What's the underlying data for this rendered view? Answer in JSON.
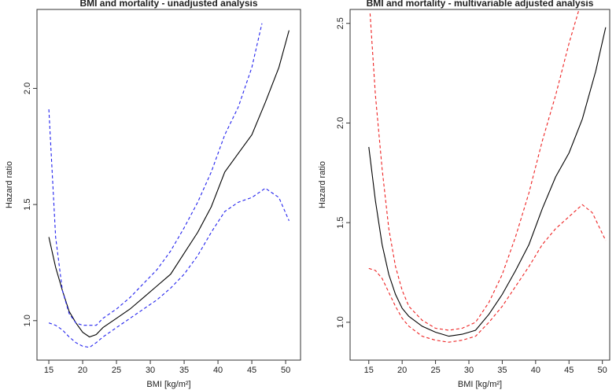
{
  "chart_data": [
    {
      "type": "line",
      "title": "BMI and mortality - unadjusted analysis",
      "xlabel": "BMI [kg/m²]",
      "ylabel": "Hazard ratio",
      "xlim": [
        13.25,
        52.2
      ],
      "ylim": [
        0.83,
        2.34
      ],
      "xticks": [
        15,
        20,
        25,
        30,
        35,
        40,
        45,
        50
      ],
      "yticks": [
        {
          "value": 1.0,
          "label": "1.0"
        },
        {
          "value": 1.5,
          "label": "1.5"
        },
        {
          "value": 2.0,
          "label": "2.0"
        }
      ],
      "series": [
        {
          "color": "#000000",
          "dashed": false,
          "x": [
            15,
            16,
            17,
            18,
            19,
            20,
            21,
            22,
            23,
            25,
            27,
            29,
            31,
            33,
            35,
            37,
            39,
            41,
            43,
            45,
            47,
            49,
            50.5
          ],
          "values": [
            1.36,
            1.23,
            1.13,
            1.04,
            0.99,
            0.95,
            0.93,
            0.94,
            0.97,
            1.01,
            1.05,
            1.1,
            1.15,
            1.2,
            1.29,
            1.38,
            1.49,
            1.64,
            1.72,
            1.8,
            1.94,
            2.09,
            2.25
          ]
        },
        {
          "color": "#2222ee",
          "dashed": true,
          "x": [
            15,
            16,
            17,
            18,
            19,
            20,
            21,
            22,
            23,
            25,
            27,
            29,
            31,
            33,
            35,
            37,
            39,
            41,
            43,
            45,
            46.5
          ],
          "values": [
            1.91,
            1.36,
            1.13,
            1.03,
            0.99,
            0.98,
            0.98,
            0.98,
            1.01,
            1.05,
            1.1,
            1.16,
            1.22,
            1.3,
            1.4,
            1.51,
            1.64,
            1.8,
            1.92,
            2.09,
            2.28
          ]
        },
        {
          "color": "#2222ee",
          "dashed": true,
          "x": [
            15,
            16,
            17,
            18,
            19,
            20,
            21,
            22,
            23,
            25,
            27,
            29,
            31,
            33,
            35,
            37,
            39,
            41,
            43,
            45,
            47,
            49,
            50.5
          ],
          "values": [
            0.99,
            0.98,
            0.96,
            0.93,
            0.905,
            0.89,
            0.885,
            0.905,
            0.93,
            0.97,
            1.01,
            1.05,
            1.09,
            1.14,
            1.2,
            1.28,
            1.38,
            1.47,
            1.51,
            1.53,
            1.57,
            1.53,
            1.43
          ]
        }
      ]
    },
    {
      "type": "line",
      "title": "BMI and mortality - multivariable adjusted analysis",
      "xlabel": "BMI [kg/m²]",
      "ylabel": "Hazard ratio",
      "xlim": [
        12.2,
        51.1
      ],
      "ylim": [
        0.81,
        2.57
      ],
      "xticks": [
        15,
        20,
        25,
        30,
        35,
        40,
        45,
        50
      ],
      "yticks": [
        {
          "value": 1.0,
          "label": "1.0"
        },
        {
          "value": 1.5,
          "label": "1.5"
        },
        {
          "value": 2.0,
          "label": "2.0"
        },
        {
          "value": 2.5,
          "label": "2.5"
        }
      ],
      "series": [
        {
          "color": "#000000",
          "dashed": false,
          "x": [
            15,
            16,
            17,
            18,
            19,
            20,
            21,
            23,
            25,
            27,
            29,
            31,
            33,
            35,
            37,
            39,
            41,
            43,
            45,
            47,
            49,
            50.5
          ],
          "values": [
            1.88,
            1.61,
            1.39,
            1.24,
            1.14,
            1.07,
            1.03,
            0.98,
            0.95,
            0.93,
            0.94,
            0.96,
            1.04,
            1.14,
            1.26,
            1.39,
            1.57,
            1.73,
            1.85,
            2.02,
            2.26,
            2.48
          ]
        },
        {
          "color": "#ee2222",
          "dashed": true,
          "x": [
            15.2,
            16,
            17,
            18,
            19,
            20,
            21,
            23,
            25,
            27,
            29,
            31,
            33,
            35,
            37,
            39,
            41,
            43,
            45,
            46.5
          ],
          "values": [
            2.55,
            2.14,
            1.77,
            1.47,
            1.28,
            1.16,
            1.08,
            1.01,
            0.97,
            0.96,
            0.97,
            1.0,
            1.1,
            1.24,
            1.43,
            1.65,
            1.91,
            2.14,
            2.4,
            2.57
          ]
        },
        {
          "color": "#ee2222",
          "dashed": true,
          "x": [
            15,
            16,
            17,
            18,
            19,
            20,
            21,
            23,
            25,
            27,
            29,
            31,
            33,
            35,
            37,
            39,
            41,
            43,
            45,
            47,
            48.5,
            50.5
          ],
          "values": [
            1.27,
            1.26,
            1.22,
            1.15,
            1.08,
            1.02,
            0.98,
            0.93,
            0.91,
            0.9,
            0.91,
            0.93,
            1.0,
            1.08,
            1.18,
            1.28,
            1.39,
            1.47,
            1.53,
            1.59,
            1.55,
            1.41
          ]
        }
      ]
    }
  ]
}
